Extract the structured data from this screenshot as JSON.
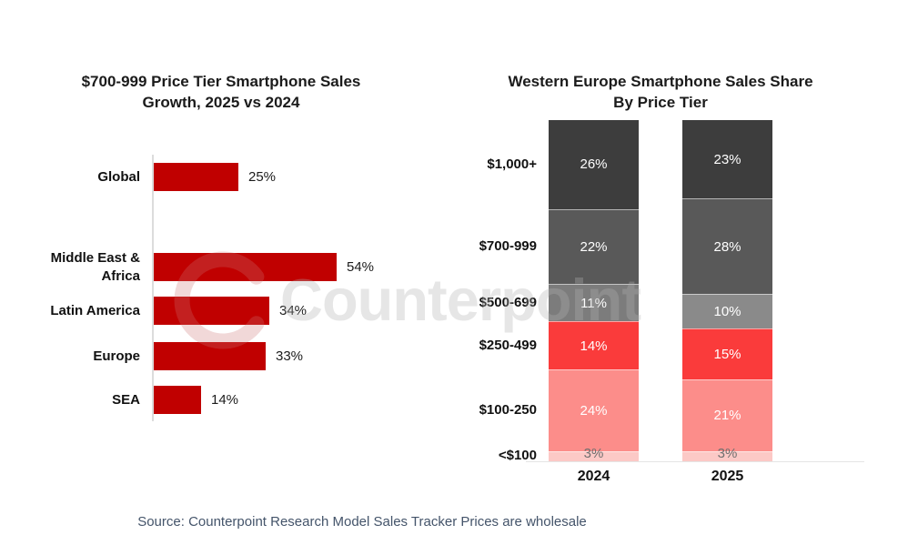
{
  "watermark": {
    "text": "Counterpoint",
    "logo": "counterpoint-c-logo"
  },
  "source_note": "Source: Counterpoint Research Model Sales Tracker Prices are wholesale",
  "colors": {
    "brand_red": "#C00000",
    "axis_gray": "#DCDCDC",
    "source_text": "#44546A"
  },
  "chart_data": [
    {
      "type": "bar",
      "orientation": "horizontal",
      "title": "$700-999 Price Tier Smartphone Sales Growth, 2025 vs 2024",
      "title_lines": [
        "$700-999 Price Tier Smartphone Sales",
        "Growth, 2025 vs 2024"
      ],
      "categories": [
        "Global",
        "Middle East & Africa",
        "Latin America",
        "Europe",
        "SEA"
      ],
      "values": [
        25,
        54,
        34,
        33,
        14
      ],
      "value_labels": [
        "25%",
        "54%",
        "34%",
        "33%",
        "14%"
      ],
      "bar_color": "#C00000",
      "xlim": [
        0,
        60
      ],
      "grid": false,
      "value_label_position": "outside-right"
    },
    {
      "type": "bar",
      "subtype": "stacked-100-column",
      "title": "Western Europe Smartphone Sales Share By Price Tier",
      "title_lines": [
        "Western Europe Smartphone Sales Share",
        "By Price Tier"
      ],
      "categories": [
        "2024",
        "2025"
      ],
      "tiers": [
        "$1,000+",
        "$700-999",
        "$500-699",
        "$250-499",
        "$100-250",
        "<$100"
      ],
      "series": [
        {
          "name": "2024",
          "values": [
            26,
            22,
            11,
            14,
            24,
            3
          ],
          "value_labels": [
            "26%",
            "22%",
            "11%",
            "14%",
            "24%",
            "3%"
          ],
          "colors": [
            "#3D3D3D",
            "#595959",
            "#7C7C7C",
            "#FA3B3B",
            "#FC8D8A",
            "#FCC9C6"
          ]
        },
        {
          "name": "2025",
          "values": [
            23,
            28,
            10,
            15,
            21,
            3
          ],
          "value_labels": [
            "23%",
            "28%",
            "10%",
            "15%",
            "21%",
            "3%"
          ],
          "colors": [
            "#3D3D3D",
            "#595959",
            "#8A8A8A",
            "#FA3B3B",
            "#FC8D8A",
            "#FCC9C6"
          ]
        }
      ],
      "value_text_colors": [
        "#FFFFFF",
        "#FFFFFF",
        "#FFFFFF",
        "#FFFFFF",
        "#FFFFFF",
        "#6E6E6E"
      ],
      "ylim": [
        0,
        100
      ],
      "legend": "none"
    }
  ]
}
